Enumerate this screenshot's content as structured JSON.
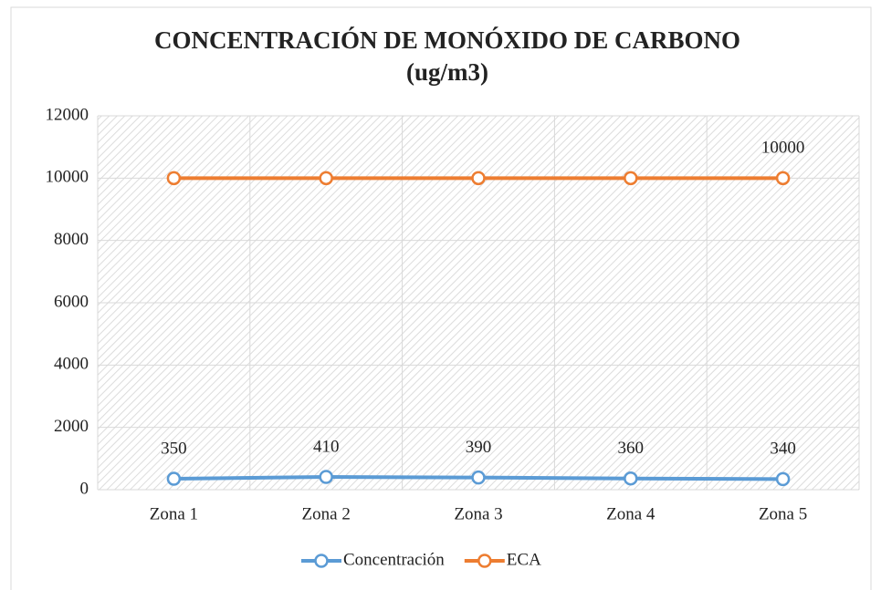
{
  "chart_data": {
    "type": "line",
    "title": [
      "CONCENTRACIÓN DE MONÓXIDO DE CARBONO",
      "(ug/m3)"
    ],
    "categories": [
      "Zona 1",
      "Zona 2",
      "Zona 3",
      "Zona 4",
      "Zona 5"
    ],
    "series": [
      {
        "name": "Concentración",
        "color": "#5b9bd5",
        "values": [
          350,
          410,
          390,
          360,
          340
        ],
        "data_labels": "all"
      },
      {
        "name": "ECA",
        "color": "#ed7d31",
        "values": [
          10000,
          10000,
          10000,
          10000,
          10000
        ],
        "data_labels": "last"
      }
    ],
    "ylim": [
      0,
      12000
    ],
    "yticks": [
      0,
      2000,
      4000,
      6000,
      8000,
      10000,
      12000
    ],
    "grid": true,
    "legend": "bottom"
  }
}
